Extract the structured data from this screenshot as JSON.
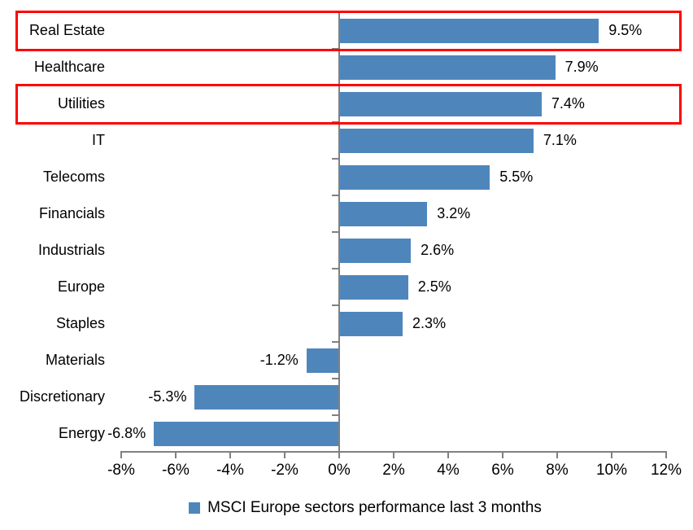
{
  "chart_data": {
    "type": "bar",
    "orientation": "horizontal",
    "title": "",
    "categories": [
      "Real Estate",
      "Healthcare",
      "Utilities",
      "IT",
      "Telecoms",
      "Financials",
      "Industrials",
      "Europe",
      "Staples",
      "Materials",
      "Discretionary",
      "Energy"
    ],
    "values": [
      9.5,
      7.9,
      7.4,
      7.1,
      5.5,
      3.2,
      2.6,
      2.5,
      2.3,
      -1.2,
      -5.3,
      -6.8
    ],
    "data_labels": [
      "9.5%",
      "7.9%",
      "7.4%",
      "7.1%",
      "5.5%",
      "3.2%",
      "2.6%",
      "2.5%",
      "2.3%",
      "-1.2%",
      "-5.3%",
      "-6.8%"
    ],
    "highlighted_categories": [
      "Real Estate",
      "Utilities"
    ],
    "xlim": [
      -8,
      12
    ],
    "x_ticks": [
      {
        "label": "-8%",
        "value": -8
      },
      {
        "label": "-6%",
        "value": -6
      },
      {
        "label": "-4%",
        "value": -4
      },
      {
        "label": "-2%",
        "value": -2
      },
      {
        "label": "0%",
        "value": 0
      },
      {
        "label": "2%",
        "value": 2
      },
      {
        "label": "4%",
        "value": 4
      },
      {
        "label": "6%",
        "value": 6
      },
      {
        "label": "8%",
        "value": 8
      },
      {
        "label": "10%",
        "value": 10
      },
      {
        "label": "12%",
        "value": 12
      }
    ],
    "grid": false,
    "legend": {
      "label": "MSCI Europe sectors performance last 3 months",
      "marker": "square",
      "position": "bottom-center"
    },
    "colors": {
      "bar": "#4E86BC",
      "highlight_border": "#FF0000",
      "axis": "#808080",
      "text": "#000000"
    }
  }
}
